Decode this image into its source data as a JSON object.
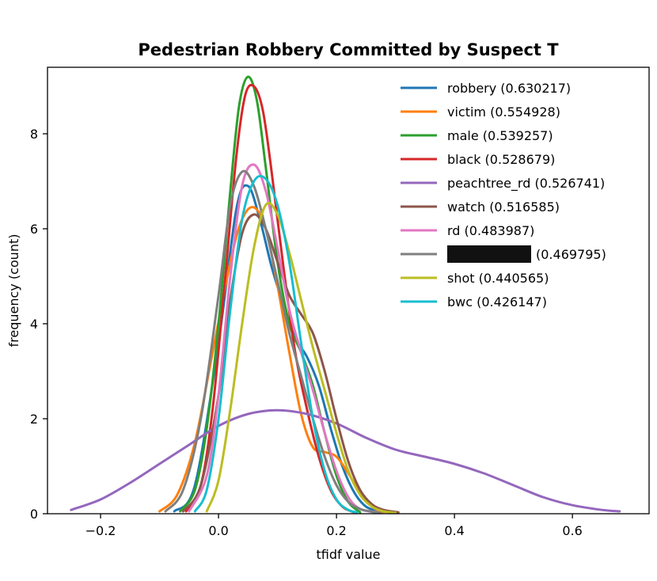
{
  "chart_data": {
    "type": "line",
    "title": "Pedestrian Robbery Committed by Suspect T",
    "xlabel": "tfidf value",
    "ylabel": "frequency (count)",
    "xlim": [
      -0.29,
      0.73
    ],
    "ylim": [
      0,
      9.4
    ],
    "x_ticks": [
      -0.2,
      0.0,
      0.2,
      0.4,
      0.6
    ],
    "x_tick_labels": [
      "−0.2",
      "0.0",
      "0.2",
      "0.4",
      "0.6"
    ],
    "y_ticks": [
      0,
      2,
      4,
      6,
      8
    ],
    "y_tick_labels": [
      "0",
      "2",
      "4",
      "6",
      "8"
    ],
    "legend_position": "top-right",
    "series": [
      {
        "name": "robbery",
        "legend_value": "(0.630217)",
        "color": "#1f77b4",
        "x": [
          -0.075,
          -0.04,
          0.0,
          0.03,
          0.05,
          0.07,
          0.09,
          0.11,
          0.13,
          0.15,
          0.17,
          0.19,
          0.21,
          0.23,
          0.25,
          0.275
        ],
        "y": [
          0.05,
          0.6,
          3.6,
          6.4,
          6.9,
          6.2,
          5.2,
          4.4,
          3.7,
          3.3,
          2.7,
          1.8,
          1.0,
          0.45,
          0.15,
          0.03
        ]
      },
      {
        "name": "victim",
        "legend_value": "(0.554928)",
        "color": "#ff7f0e",
        "x": [
          -0.1,
          -0.07,
          -0.04,
          -0.01,
          0.02,
          0.04,
          0.06,
          0.08,
          0.1,
          0.12,
          0.14,
          0.16,
          0.18,
          0.2,
          0.22,
          0.24,
          0.26,
          0.28
        ],
        "y": [
          0.05,
          0.4,
          1.5,
          3.4,
          5.3,
          6.2,
          6.45,
          6.0,
          4.8,
          3.4,
          2.1,
          1.4,
          1.3,
          1.2,
          0.85,
          0.45,
          0.15,
          0.03
        ]
      },
      {
        "name": "male",
        "legend_value": "(0.539257)",
        "color": "#2ca02c",
        "x": [
          -0.065,
          -0.04,
          -0.02,
          0.0,
          0.02,
          0.035,
          0.05,
          0.065,
          0.08,
          0.1,
          0.12,
          0.14,
          0.16,
          0.18,
          0.2,
          0.22,
          0.24
        ],
        "y": [
          0.05,
          0.5,
          1.8,
          4.0,
          6.8,
          8.6,
          9.2,
          8.7,
          7.3,
          5.3,
          4.0,
          3.4,
          2.7,
          1.7,
          0.8,
          0.25,
          0.03
        ]
      },
      {
        "name": "black",
        "legend_value": "(0.528679)",
        "color": "#d62728",
        "x": [
          -0.055,
          -0.03,
          -0.01,
          0.01,
          0.03,
          0.045,
          0.06,
          0.075,
          0.09,
          0.11,
          0.13,
          0.15,
          0.17,
          0.19,
          0.21,
          0.23
        ],
        "y": [
          0.05,
          0.6,
          2.2,
          4.8,
          7.5,
          8.8,
          9.0,
          8.5,
          7.2,
          5.2,
          3.4,
          2.2,
          1.2,
          0.5,
          0.15,
          0.03
        ]
      },
      {
        "name": "peachtree_rd",
        "legend_value": "(0.526741)",
        "color": "#9467bd",
        "x": [
          -0.25,
          -0.2,
          -0.15,
          -0.1,
          -0.05,
          0.0,
          0.05,
          0.1,
          0.15,
          0.2,
          0.25,
          0.3,
          0.35,
          0.4,
          0.45,
          0.5,
          0.55,
          0.6,
          0.65,
          0.68
        ],
        "y": [
          0.08,
          0.3,
          0.65,
          1.05,
          1.45,
          1.85,
          2.1,
          2.18,
          2.1,
          1.9,
          1.6,
          1.35,
          1.2,
          1.05,
          0.85,
          0.6,
          0.35,
          0.18,
          0.08,
          0.05
        ]
      },
      {
        "name": "watch",
        "legend_value": "(0.516585)",
        "color": "#8c564b",
        "x": [
          -0.06,
          -0.03,
          0.0,
          0.02,
          0.04,
          0.06,
          0.08,
          0.1,
          0.12,
          0.14,
          0.16,
          0.18,
          0.2,
          0.22,
          0.24,
          0.26,
          0.28,
          0.305
        ],
        "y": [
          0.05,
          0.6,
          2.5,
          4.5,
          5.9,
          6.3,
          6.0,
          5.3,
          4.6,
          4.2,
          3.8,
          3.0,
          2.0,
          1.1,
          0.5,
          0.2,
          0.08,
          0.03
        ]
      },
      {
        "name": "rd",
        "legend_value": "(0.483987)",
        "color": "#e377c2",
        "x": [
          -0.05,
          -0.02,
          0.0,
          0.02,
          0.04,
          0.06,
          0.08,
          0.1,
          0.12,
          0.14,
          0.16,
          0.18,
          0.2,
          0.22,
          0.24,
          0.27
        ],
        "y": [
          0.05,
          0.8,
          2.5,
          5.0,
          6.9,
          7.35,
          6.8,
          5.6,
          4.3,
          3.4,
          2.6,
          1.7,
          0.9,
          0.35,
          0.1,
          0.03
        ]
      },
      {
        "name": "[redacted]",
        "legend_value": "(0.469795)",
        "color": "#7f7f7f",
        "x": [
          -0.09,
          -0.06,
          -0.03,
          0.0,
          0.02,
          0.04,
          0.06,
          0.08,
          0.1,
          0.12,
          0.14,
          0.16,
          0.18,
          0.2,
          0.22,
          0.24,
          0.26,
          0.275
        ],
        "y": [
          0.05,
          0.5,
          2.0,
          4.6,
          6.5,
          7.2,
          6.9,
          6.0,
          4.9,
          3.8,
          2.9,
          2.0,
          1.2,
          0.6,
          0.25,
          0.1,
          0.04,
          0.02
        ]
      },
      {
        "name": "shot",
        "legend_value": "(0.440565)",
        "color": "#bcbd22",
        "x": [
          -0.02,
          0.0,
          0.02,
          0.04,
          0.06,
          0.08,
          0.1,
          0.12,
          0.14,
          0.16,
          0.18,
          0.2,
          0.22,
          0.24,
          0.26,
          0.28,
          0.3
        ],
        "y": [
          0.05,
          0.7,
          2.2,
          4.0,
          5.6,
          6.5,
          6.3,
          5.5,
          4.5,
          3.5,
          2.6,
          1.7,
          0.9,
          0.4,
          0.15,
          0.05,
          0.02
        ]
      },
      {
        "name": "bwc",
        "legend_value": "(0.426147)",
        "color": "#17becf",
        "x": [
          -0.04,
          -0.02,
          0.0,
          0.02,
          0.04,
          0.06,
          0.08,
          0.1,
          0.12,
          0.14,
          0.16,
          0.18,
          0.2,
          0.22,
          0.235
        ],
        "y": [
          0.05,
          0.5,
          2.0,
          4.3,
          6.2,
          7.0,
          7.05,
          6.5,
          5.3,
          3.6,
          2.0,
          0.9,
          0.3,
          0.08,
          0.03
        ]
      }
    ]
  }
}
